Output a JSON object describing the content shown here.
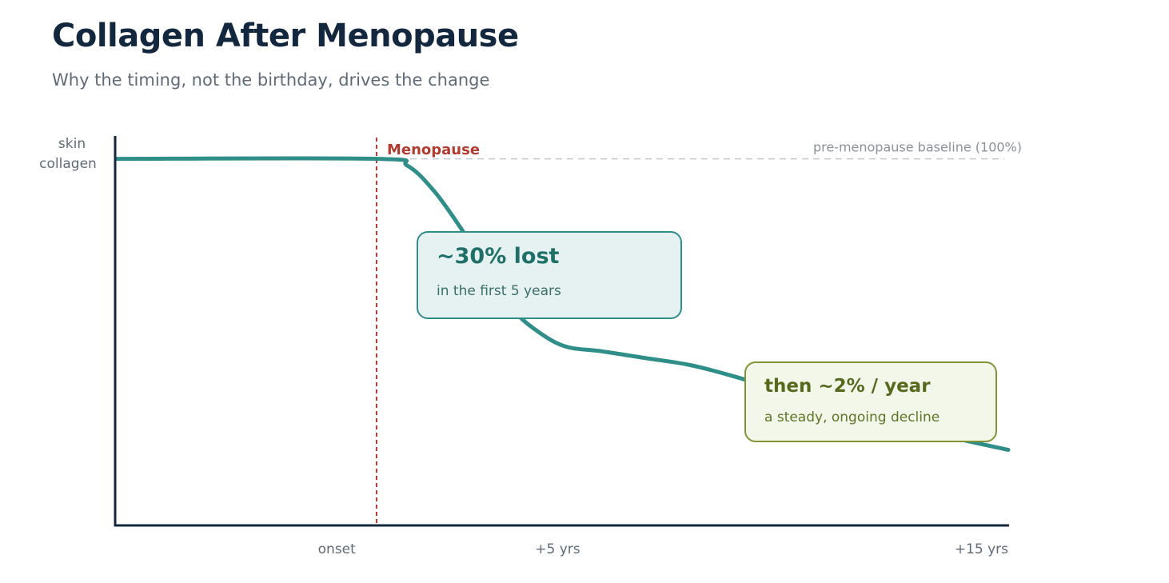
{
  "title": "Collagen After Menopause",
  "subtitle": "Why the timing, not the birthday, drives the change",
  "colors": {
    "axis": "#13283f",
    "curve": "#2f8f88",
    "marker": "#b23a2f",
    "baseline": "#c5c9ce",
    "callout_a": "#2f8f88",
    "callout_b": "#7f9438"
  },
  "chart_data": {
    "type": "line",
    "title": "Collagen After Menopause",
    "subtitle": "Why the timing, not the birthday, drives the change",
    "ylabel_lines": [
      "skin",
      "collagen"
    ],
    "x_ticks": [
      {
        "x": 0,
        "label": "onset"
      },
      {
        "x": 5,
        "label": "+5 yrs"
      },
      {
        "x": 15,
        "label": "+15 yrs"
      }
    ],
    "xlim": [
      -5,
      15.2
    ],
    "ylim": [
      20,
      105
    ],
    "grid": false,
    "marker": {
      "x": 0.9,
      "label": "Menopause"
    },
    "baseline": {
      "y": 100,
      "label": "pre-menopause baseline (100%)"
    },
    "series": [
      {
        "x": [
          -5.9,
          0.9,
          1.6,
          2.2,
          2.8,
          3.4,
          4.0,
          4.6,
          5.2,
          6.0,
          7.0,
          8.0,
          9.0,
          10.0,
          11.0,
          12.0,
          13.0,
          14.0,
          15.2
        ],
        "values": [
          100,
          100,
          98.5,
          93,
          85,
          76,
          67,
          62,
          59,
          58,
          56.5,
          55,
          52.5,
          49.5,
          46.5,
          44,
          41.5,
          39,
          36.5
        ]
      }
    ],
    "annotations": [
      {
        "headline": "~30% lost",
        "detail": "in the first 5 years"
      },
      {
        "headline": "then ~2% / year",
        "detail": "a steady, ongoing decline"
      }
    ]
  }
}
